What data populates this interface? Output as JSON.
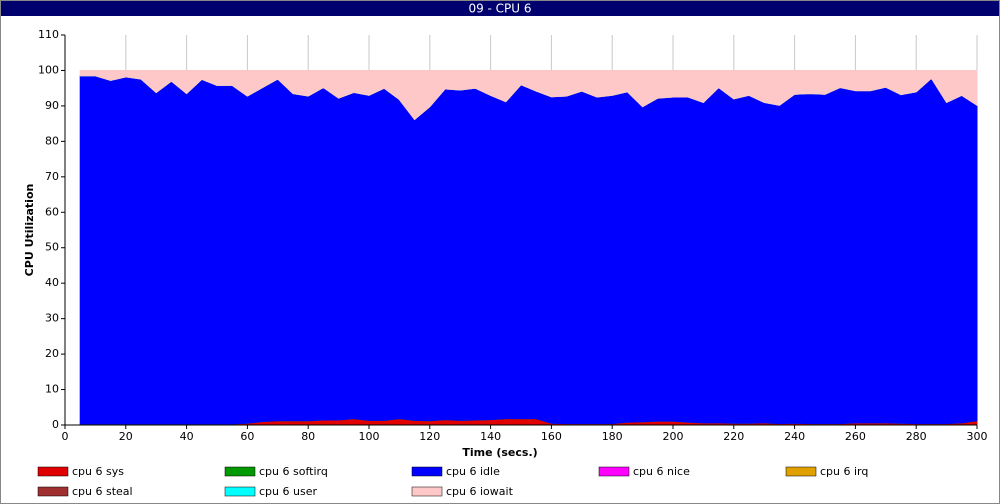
{
  "chart_data": {
    "type": "stacked-area",
    "title": "09 - CPU 6",
    "x_label": "Time (secs.)",
    "y_label": "CPU Utilization",
    "x": [
      5,
      10,
      15,
      20,
      25,
      30,
      35,
      40,
      45,
      50,
      55,
      60,
      65,
      70,
      75,
      80,
      85,
      90,
      95,
      100,
      105,
      110,
      115,
      120,
      125,
      130,
      135,
      140,
      145,
      150,
      155,
      160,
      165,
      170,
      175,
      180,
      185,
      190,
      195,
      200,
      205,
      210,
      215,
      220,
      225,
      230,
      235,
      240,
      245,
      250,
      255,
      260,
      265,
      270,
      275,
      280,
      285,
      290,
      295,
      300
    ],
    "xlim": [
      0,
      300
    ],
    "xticks": [
      0,
      20,
      40,
      60,
      80,
      100,
      120,
      140,
      160,
      180,
      200,
      220,
      240,
      260,
      280,
      300
    ],
    "ylim": [
      0,
      110
    ],
    "yticks": [
      0,
      10,
      20,
      30,
      40,
      50,
      60,
      70,
      80,
      90,
      100,
      110
    ],
    "grid": true,
    "series": [
      {
        "name": "cpu 6 sys",
        "color": "#e00000",
        "values": [
          0.3,
          0.3,
          0.3,
          0.3,
          0.3,
          0.3,
          0.3,
          0.3,
          0.3,
          0.3,
          0.3,
          0.5,
          1.0,
          1.2,
          1.2,
          1.2,
          1.4,
          1.4,
          1.8,
          1.3,
          1.3,
          1.8,
          1.3,
          1.2,
          1.5,
          1.3,
          1.4,
          1.5,
          1.8,
          1.8,
          1.8,
          0.5,
          0.4,
          0.4,
          0.4,
          0.4,
          0.8,
          0.9,
          1.1,
          1.1,
          0.8,
          0.6,
          0.6,
          0.5,
          0.5,
          0.6,
          0.4,
          0.5,
          0.4,
          0.4,
          0.4,
          0.6,
          0.6,
          0.6,
          0.5,
          0.4,
          0.4,
          0.4,
          0.6,
          1.2
        ]
      },
      {
        "name": "cpu 6 softirq",
        "color": "#009900",
        "values": [
          0,
          0,
          0,
          0,
          0,
          0,
          0,
          0,
          0,
          0,
          0,
          0,
          0,
          0,
          0,
          0,
          0,
          0,
          0,
          0,
          0,
          0,
          0,
          0,
          0,
          0,
          0,
          0,
          0,
          0,
          0,
          0,
          0,
          0,
          0,
          0,
          0,
          0,
          0,
          0,
          0,
          0,
          0,
          0,
          0,
          0,
          0,
          0,
          0,
          0,
          0,
          0,
          0,
          0,
          0,
          0,
          0,
          0,
          0,
          0
        ]
      },
      {
        "name": "cpu 6 idle",
        "color": "#0000ff",
        "values": [
          98.2,
          98.2,
          96.9,
          97.9,
          97.3,
          93.5,
          96.7,
          93.2,
          97.2,
          95.5,
          95.5,
          92.3,
          94.2,
          96.4,
          92.3,
          91.6,
          93.8,
          90.8,
          92.0,
          91.7,
          93.7,
          90.0,
          84.9,
          88.6,
          93.3,
          93.2,
          93.6,
          91.5,
          89.4,
          94.2,
          92.4,
          92.1,
          92.4,
          93.8,
          92.1,
          92.6,
          93.2,
          88.9,
          91.1,
          91.4,
          91.7,
          90.4,
          94.6,
          91.5,
          92.5,
          90.4,
          89.8,
          92.8,
          93.1,
          92.9,
          94.8,
          93.7,
          93.7,
          94.7,
          92.7,
          93.6,
          97.4,
          90.6,
          92.4,
          89.0
        ]
      },
      {
        "name": "cpu 6 nice",
        "color": "#ff00ff",
        "values": [
          0,
          0,
          0,
          0,
          0,
          0,
          0,
          0,
          0,
          0,
          0,
          0,
          0,
          0,
          0,
          0,
          0,
          0,
          0,
          0,
          0,
          0,
          0,
          0,
          0,
          0,
          0,
          0,
          0,
          0,
          0,
          0,
          0,
          0,
          0,
          0,
          0,
          0,
          0,
          0,
          0,
          0,
          0,
          0,
          0,
          0,
          0,
          0,
          0,
          0,
          0,
          0,
          0,
          0,
          0,
          0,
          0,
          0,
          0,
          0
        ]
      },
      {
        "name": "cpu 6 irq",
        "color": "#e0a000",
        "values": [
          0,
          0,
          0,
          0,
          0,
          0,
          0,
          0,
          0,
          0,
          0,
          0,
          0,
          0,
          0,
          0,
          0,
          0,
          0,
          0,
          0,
          0,
          0,
          0,
          0,
          0,
          0,
          0,
          0,
          0,
          0,
          0,
          0,
          0,
          0,
          0,
          0,
          0,
          0,
          0,
          0,
          0,
          0,
          0,
          0,
          0,
          0,
          0,
          0,
          0,
          0,
          0,
          0,
          0,
          0,
          0,
          0,
          0,
          0,
          0
        ]
      },
      {
        "name": "cpu 6 steal",
        "color": "#a03030",
        "values": [
          0,
          0,
          0,
          0,
          0,
          0,
          0,
          0,
          0,
          0,
          0,
          0,
          0,
          0,
          0,
          0,
          0,
          0,
          0,
          0,
          0,
          0,
          0,
          0,
          0,
          0,
          0,
          0,
          0,
          0,
          0,
          0,
          0,
          0,
          0,
          0,
          0,
          0,
          0,
          0,
          0,
          0,
          0,
          0,
          0,
          0,
          0,
          0,
          0,
          0,
          0,
          0,
          0,
          0,
          0,
          0,
          0,
          0,
          0,
          0
        ]
      },
      {
        "name": "cpu 6 user",
        "color": "#00ffff",
        "values": [
          0,
          0,
          0,
          0,
          0,
          0,
          0,
          0,
          0,
          0,
          0,
          0,
          0,
          0,
          0,
          0,
          0,
          0,
          0,
          0,
          0,
          0,
          0,
          0,
          0,
          0,
          0,
          0,
          0,
          0,
          0,
          0,
          0,
          0,
          0,
          0,
          0,
          0,
          0,
          0,
          0,
          0,
          0,
          0,
          0,
          0,
          0,
          0,
          0,
          0,
          0,
          0,
          0,
          0,
          0,
          0,
          0,
          0,
          0,
          0
        ]
      },
      {
        "name": "cpu 6 iowait",
        "color": "#ffc8c8",
        "values": [
          1.5,
          1.5,
          2.8,
          1.8,
          2.4,
          6.2,
          3,
          6.5,
          2.5,
          4.2,
          4.2,
          7.2,
          4.8,
          2.4,
          6.5,
          7.2,
          4.8,
          7.8,
          6.2,
          7,
          5,
          8.2,
          13.8,
          10.2,
          5.2,
          5.5,
          5,
          7,
          8.8,
          4,
          5.8,
          7.4,
          7.2,
          5.8,
          7.5,
          7,
          6,
          10.2,
          7.8,
          7.5,
          7.5,
          9,
          4.8,
          8,
          7,
          9,
          9.8,
          6.7,
          6.5,
          6.7,
          4.8,
          5.7,
          5.7,
          4.7,
          6.8,
          6,
          2.2,
          9,
          7,
          9.8
        ]
      }
    ]
  }
}
